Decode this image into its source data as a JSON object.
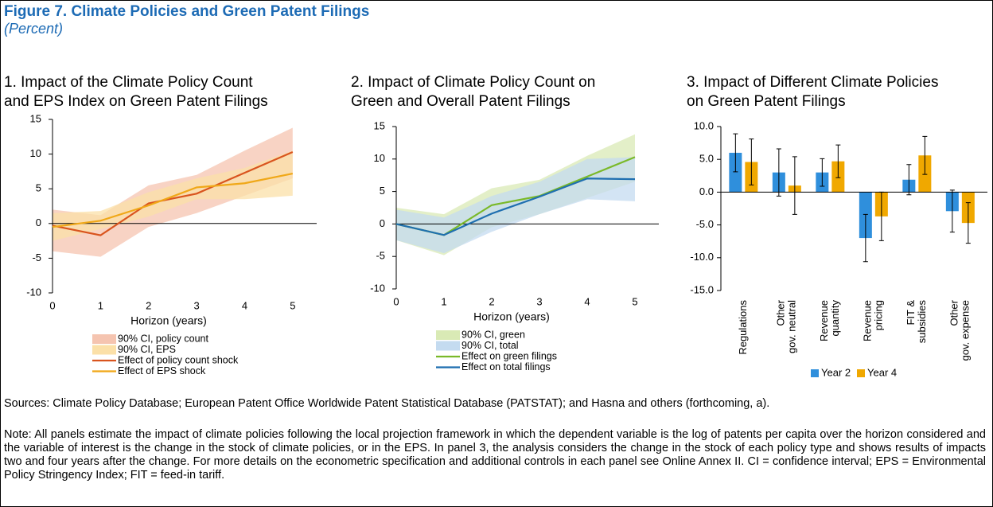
{
  "figure": {
    "title": "Figure 7. Climate Policies and Green Patent Filings",
    "subtitle": "(Percent)"
  },
  "chart_data": [
    {
      "type": "line",
      "title": [
        "1. Impact of the Climate Policy Count",
        "and EPS Index on Green Patent Filings"
      ],
      "x_label": "Horizon (years)",
      "x": [
        0,
        1,
        2,
        3,
        4,
        5
      ],
      "xlim": [
        0,
        5.5
      ],
      "xticks": [
        0,
        1,
        2,
        3,
        4,
        5
      ],
      "ylim": [
        -10,
        15
      ],
      "yticks": [
        -10,
        -5,
        0,
        5,
        10,
        15
      ],
      "series": [
        {
          "name": "90% CI, policy count",
          "color": "#f5c4b0",
          "lower": [
            -4,
            -4.8,
            -0.5,
            1.5,
            4,
            6.5
          ],
          "upper": [
            2,
            1.2,
            5.5,
            7,
            10.5,
            13.8
          ]
        },
        {
          "name": "90% CI, EPS",
          "color": "#fbe0a8",
          "lower": [
            -2.5,
            -0.8,
            1,
            3.5,
            3.5,
            4
          ],
          "upper": [
            1.5,
            1.8,
            4.5,
            6.5,
            8,
            10.5
          ]
        },
        {
          "name": "Effect of policy count shock",
          "color": "#d9541e",
          "values": [
            -0.3,
            -1.7,
            2.9,
            4.3,
            7.3,
            10.3
          ]
        },
        {
          "name": "Effect of EPS shock",
          "color": "#f0a818",
          "values": [
            -0.5,
            0.4,
            2.6,
            5.2,
            5.8,
            7.2
          ]
        }
      ]
    },
    {
      "type": "line",
      "title": [
        "2. Impact of Climate Policy Count on",
        "Green and Overall Patent Filings"
      ],
      "x_label": "Horizon (years)",
      "x": [
        0,
        1,
        2,
        3,
        4,
        5
      ],
      "xlim": [
        0,
        5.5
      ],
      "xticks": [
        0,
        1,
        2,
        3,
        4,
        5
      ],
      "ylim": [
        -10,
        15
      ],
      "yticks": [
        -10,
        -5,
        0,
        5,
        10,
        15
      ],
      "series": [
        {
          "name": "90% CI, green",
          "color": "#d9eab5",
          "lower": [
            -2.5,
            -4.8,
            -0.5,
            1.5,
            4,
            6.5
          ],
          "upper": [
            2.5,
            1.5,
            5.5,
            6.8,
            10.5,
            13.8
          ]
        },
        {
          "name": "90% CI, total",
          "color": "#c4dbf0",
          "lower": [
            -2.5,
            -4.5,
            -1.2,
            1.5,
            3.8,
            3.5
          ],
          "upper": [
            2.2,
            1,
            4.3,
            6.5,
            10,
            10.3
          ]
        },
        {
          "name": "Effect on green filings",
          "color": "#7ab929",
          "values": [
            0,
            -1.7,
            2.9,
            4.3,
            7.3,
            10.3
          ]
        },
        {
          "name": "Effect on total filings",
          "color": "#1f6fb0",
          "values": [
            0,
            -1.7,
            1.6,
            4.2,
            7.0,
            6.9
          ]
        }
      ]
    },
    {
      "type": "bar",
      "title": [
        "3. Impact of Different Climate Policies",
        "on Green Patent Filings"
      ],
      "categories": [
        [
          "Regulations"
        ],
        [
          "Other",
          "gov. neutral"
        ],
        [
          "Revenue",
          "quantity"
        ],
        [
          "Revenue",
          "pricing"
        ],
        [
          "FIT &",
          "subsidies"
        ],
        [
          "Other",
          "gov. expense"
        ]
      ],
      "ylim": [
        -15,
        10
      ],
      "yticks": [
        {
          "value": -15,
          "label": "-15.0"
        },
        {
          "value": -10,
          "label": "-10.0"
        },
        {
          "value": -5,
          "label": "-5.0"
        },
        {
          "value": 0,
          "label": "0.0"
        },
        {
          "value": 5,
          "label": "5.0"
        },
        {
          "value": 10,
          "label": "10.0"
        }
      ],
      "series": [
        {
          "name": "Year 2",
          "color": "#2f8fdc",
          "values": [
            6.0,
            3.0,
            3.0,
            -7.0,
            1.9,
            -2.9
          ],
          "errors": [
            2.9,
            3.6,
            2.1,
            3.6,
            2.3,
            3.2
          ]
        },
        {
          "name": "Year 4",
          "color": "#f0a800",
          "values": [
            4.6,
            1.0,
            4.7,
            -3.7,
            5.6,
            -4.7
          ],
          "errors": [
            3.5,
            4.4,
            2.5,
            3.7,
            2.9,
            3.1
          ]
        }
      ]
    }
  ],
  "sources": "Sources: Climate Policy Database; European Patent Office Worldwide Patent Statistical Database (PATSTAT); and Hasna and others (forthcoming, a).",
  "note": "Note: All panels estimate the impact of climate policies following the local projection framework in which the dependent variable is the log of patents per capita over the horizon considered and the variable of interest is the change in the stock of climate policies, or in the EPS. In panel 3, the analysis considers the change in the stock of each policy type and shows results of impacts two and four years after the change. For more details on the econometric specification and additional controls in each panel see Online Annex II. CI = confidence interval; EPS = Environmental Policy Stringency Index; FIT = feed-in tariff."
}
